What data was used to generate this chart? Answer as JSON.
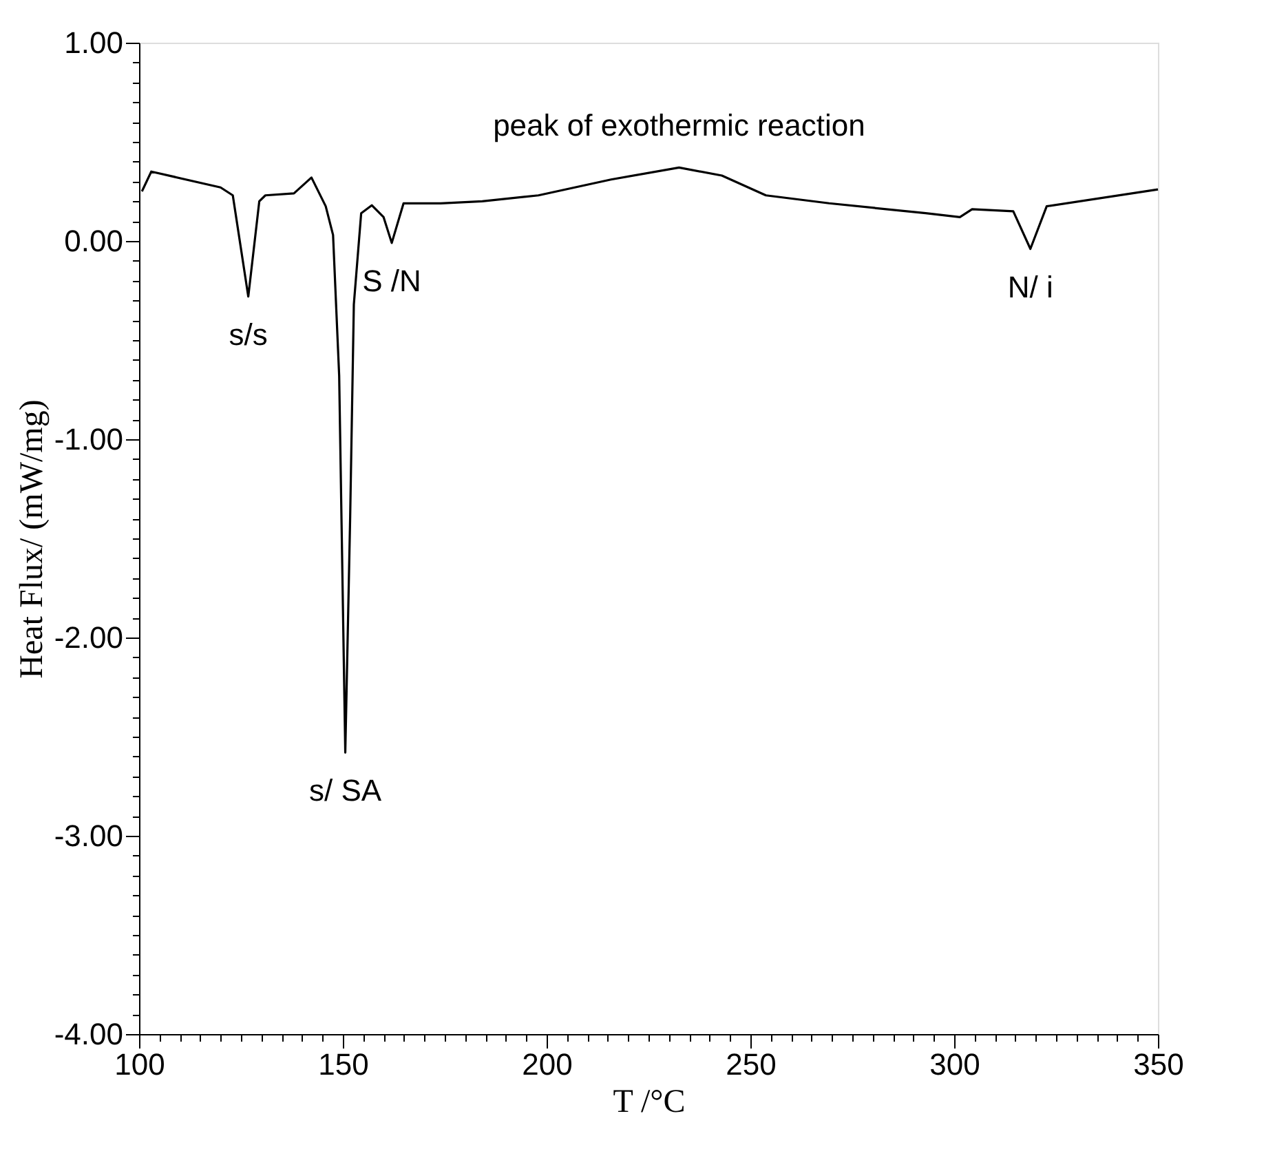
{
  "chart_data": {
    "type": "line",
    "xlabel": "T  /°C",
    "ylabel": "Heat Flux/ (mW/mg)",
    "x": [
      100.7,
      103,
      120,
      123,
      126.8,
      129.5,
      131,
      138,
      142.3,
      145.8,
      147.6,
      149.1,
      150.6,
      151.8,
      152.7,
      154.5,
      157.1,
      160,
      162,
      164.9,
      174,
      184.2,
      198,
      215.8,
      232.5,
      243,
      253.8,
      269.3,
      293,
      301.4,
      304.4,
      314.5,
      318.7,
      322.7,
      350
    ],
    "series": [
      {
        "color": "#000000",
        "values": [
          0.25,
          0.35,
          0.27,
          0.23,
          -0.28,
          0.2,
          0.23,
          0.24,
          0.32,
          0.175,
          0.03,
          -0.68,
          -2.58,
          -1.39,
          -0.32,
          0.14,
          0.18,
          0.12,
          -0.01,
          0.19,
          0.19,
          0.2,
          0.23,
          0.31,
          0.37,
          0.33,
          0.23,
          0.19,
          0.14,
          0.12,
          0.16,
          0.15,
          -0.04,
          0.175,
          0.26
        ]
      }
    ],
    "xlim": [
      100,
      350
    ],
    "ylim": [
      -4,
      1
    ],
    "xticks": [
      100,
      {
        "value": 105,
        "label": null
      },
      {
        "value": 110,
        "label": null
      },
      {
        "value": 115,
        "label": null
      },
      {
        "value": 120,
        "label": null
      },
      {
        "value": 125,
        "label": null
      },
      {
        "value": 130,
        "label": null
      },
      {
        "value": 135,
        "label": null
      },
      {
        "value": 140,
        "label": null
      },
      {
        "value": 145,
        "label": null
      },
      150,
      {
        "value": 155,
        "label": null
      },
      {
        "value": 160,
        "label": null
      },
      {
        "value": 165,
        "label": null
      },
      {
        "value": 170,
        "label": null
      },
      {
        "value": 175,
        "label": null
      },
      {
        "value": 180,
        "label": null
      },
      {
        "value": 185,
        "label": null
      },
      {
        "value": 190,
        "label": null
      },
      {
        "value": 195,
        "label": null
      },
      200,
      {
        "value": 205,
        "label": null
      },
      {
        "value": 210,
        "label": null
      },
      {
        "value": 215,
        "label": null
      },
      {
        "value": 220,
        "label": null
      },
      {
        "value": 225,
        "label": null
      },
      {
        "value": 230,
        "label": null
      },
      {
        "value": 235,
        "label": null
      },
      {
        "value": 240,
        "label": null
      },
      {
        "value": 245,
        "label": null
      },
      250,
      {
        "value": 255,
        "label": null
      },
      {
        "value": 260,
        "label": null
      },
      {
        "value": 265,
        "label": null
      },
      {
        "value": 270,
        "label": null
      },
      {
        "value": 275,
        "label": null
      },
      {
        "value": 280,
        "label": null
      },
      {
        "value": 285,
        "label": null
      },
      {
        "value": 290,
        "label": null
      },
      {
        "value": 295,
        "label": null
      },
      300,
      {
        "value": 305,
        "label": null
      },
      {
        "value": 310,
        "label": null
      },
      {
        "value": 315,
        "label": null
      },
      {
        "value": 320,
        "label": null
      },
      {
        "value": 325,
        "label": null
      },
      {
        "value": 330,
        "label": null
      },
      {
        "value": 335,
        "label": null
      },
      {
        "value": 340,
        "label": null
      },
      {
        "value": 345,
        "label": null
      },
      350
    ],
    "yticks": [
      {
        "value": -4,
        "label": "-4.00"
      },
      {
        "value": -3.9,
        "label": null
      },
      {
        "value": -3.8,
        "label": null
      },
      {
        "value": -3.7,
        "label": null
      },
      {
        "value": -3.6,
        "label": null
      },
      {
        "value": -3.5,
        "label": null
      },
      {
        "value": -3.4,
        "label": null
      },
      {
        "value": -3.3,
        "label": null
      },
      {
        "value": -3.2,
        "label": null
      },
      {
        "value": -3.1,
        "label": null
      },
      {
        "value": -3,
        "label": "-3.00"
      },
      {
        "value": -2.9,
        "label": null
      },
      {
        "value": -2.8,
        "label": null
      },
      {
        "value": -2.7,
        "label": null
      },
      {
        "value": -2.6,
        "label": null
      },
      {
        "value": -2.5,
        "label": null
      },
      {
        "value": -2.4,
        "label": null
      },
      {
        "value": -2.3,
        "label": null
      },
      {
        "value": -2.2,
        "label": null
      },
      {
        "value": -2.1,
        "label": null
      },
      {
        "value": -2,
        "label": "-2.00"
      },
      {
        "value": -1.9,
        "label": null
      },
      {
        "value": -1.8,
        "label": null
      },
      {
        "value": -1.7,
        "label": null
      },
      {
        "value": -1.6,
        "label": null
      },
      {
        "value": -1.5,
        "label": null
      },
      {
        "value": -1.4,
        "label": null
      },
      {
        "value": -1.3,
        "label": null
      },
      {
        "value": -1.2,
        "label": null
      },
      {
        "value": -1.1,
        "label": null
      },
      {
        "value": -1,
        "label": "-1.00"
      },
      {
        "value": -0.9,
        "label": null
      },
      {
        "value": -0.8,
        "label": null
      },
      {
        "value": -0.7,
        "label": null
      },
      {
        "value": -0.6,
        "label": null
      },
      {
        "value": -0.5,
        "label": null
      },
      {
        "value": -0.4,
        "label": null
      },
      {
        "value": -0.3,
        "label": null
      },
      {
        "value": -0.2,
        "label": null
      },
      {
        "value": -0.1,
        "label": null
      },
      {
        "value": 0,
        "label": "0.00"
      },
      {
        "value": 0.1,
        "label": null
      },
      {
        "value": 0.2,
        "label": null
      },
      {
        "value": 0.3,
        "label": null
      },
      {
        "value": 0.4,
        "label": null
      },
      {
        "value": 0.5,
        "label": null
      },
      {
        "value": 0.6,
        "label": null
      },
      {
        "value": 0.7,
        "label": null
      },
      {
        "value": 0.8,
        "label": null
      },
      {
        "value": 0.9,
        "label": null
      },
      {
        "value": 1,
        "label": "1.00"
      }
    ],
    "grid": false,
    "marker": "none",
    "line_style": "solid",
    "annotations": [
      {
        "text": "s/s",
        "x": 126.8,
        "y": -0.28
      },
      {
        "text": "s/ SA",
        "x": 150.6,
        "y": -2.58
      },
      {
        "text": "S  /N",
        "x": 162,
        "y": -0.01
      },
      {
        "text": "N/  i",
        "x": 318.7,
        "y": -0.04
      },
      {
        "text": "peak of exothermic reaction",
        "x": 232.5,
        "y": 0.37
      }
    ]
  }
}
